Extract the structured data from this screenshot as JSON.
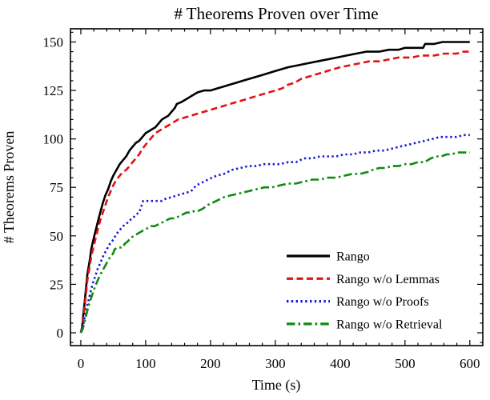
{
  "chart_data": {
    "type": "line",
    "title": "# Theorems Proven over Time",
    "xlabel": "Time (s)",
    "ylabel": "# Theorems Proven",
    "xlim": [
      -16,
      620
    ],
    "ylim": [
      -6.6,
      156.8
    ],
    "x_ticks": [
      0,
      100,
      200,
      300,
      400,
      500,
      600
    ],
    "y_ticks": [
      0,
      25,
      50,
      75,
      100,
      125,
      150
    ],
    "x_minor_step": 20,
    "y_minor_step": 5,
    "grid": false,
    "legend_position": "lower right",
    "series": [
      {
        "name": "Rango",
        "color": "#000000",
        "style": "solid",
        "points": [
          [
            0,
            0
          ],
          [
            2,
            3
          ],
          [
            4,
            10
          ],
          [
            6,
            16
          ],
          [
            8,
            23
          ],
          [
            10,
            30
          ],
          [
            12,
            34
          ],
          [
            14,
            38
          ],
          [
            16,
            43
          ],
          [
            18,
            46
          ],
          [
            20,
            49
          ],
          [
            23,
            53
          ],
          [
            26,
            57
          ],
          [
            30,
            62
          ],
          [
            34,
            67
          ],
          [
            38,
            71
          ],
          [
            42,
            74
          ],
          [
            46,
            78
          ],
          [
            50,
            81
          ],
          [
            55,
            84
          ],
          [
            60,
            87
          ],
          [
            65,
            89
          ],
          [
            70,
            91
          ],
          [
            75,
            94
          ],
          [
            80,
            96
          ],
          [
            85,
            98
          ],
          [
            90,
            99
          ],
          [
            95,
            101
          ],
          [
            100,
            103
          ],
          [
            105,
            104
          ],
          [
            110,
            105
          ],
          [
            115,
            106
          ],
          [
            120,
            108
          ],
          [
            125,
            110
          ],
          [
            130,
            111
          ],
          [
            135,
            112
          ],
          [
            140,
            114
          ],
          [
            145,
            116
          ],
          [
            148,
            118
          ],
          [
            155,
            119
          ],
          [
            160,
            120
          ],
          [
            165,
            121
          ],
          [
            170,
            122
          ],
          [
            175,
            123
          ],
          [
            180,
            124
          ],
          [
            190,
            125
          ],
          [
            200,
            125
          ],
          [
            210,
            126
          ],
          [
            220,
            127
          ],
          [
            230,
            128
          ],
          [
            240,
            129
          ],
          [
            250,
            130
          ],
          [
            260,
            131
          ],
          [
            270,
            132
          ],
          [
            280,
            133
          ],
          [
            290,
            134
          ],
          [
            300,
            135
          ],
          [
            310,
            136
          ],
          [
            320,
            137
          ],
          [
            335,
            138
          ],
          [
            350,
            139
          ],
          [
            365,
            140
          ],
          [
            380,
            141
          ],
          [
            395,
            142
          ],
          [
            410,
            143
          ],
          [
            425,
            144
          ],
          [
            440,
            145
          ],
          [
            460,
            145
          ],
          [
            475,
            146
          ],
          [
            490,
            146
          ],
          [
            500,
            147
          ],
          [
            515,
            147
          ],
          [
            528,
            147
          ],
          [
            531,
            149
          ],
          [
            545,
            149
          ],
          [
            558,
            150
          ],
          [
            600,
            150
          ]
        ]
      },
      {
        "name": "Rango w/o Lemmas",
        "color": "#e31111",
        "style": "dashed",
        "points": [
          [
            0,
            0
          ],
          [
            2,
            2
          ],
          [
            4,
            8
          ],
          [
            6,
            14
          ],
          [
            8,
            20
          ],
          [
            10,
            27
          ],
          [
            12,
            31
          ],
          [
            14,
            35
          ],
          [
            16,
            39
          ],
          [
            18,
            42
          ],
          [
            20,
            45
          ],
          [
            23,
            49
          ],
          [
            26,
            53
          ],
          [
            30,
            58
          ],
          [
            34,
            62
          ],
          [
            38,
            66
          ],
          [
            42,
            70
          ],
          [
            46,
            73
          ],
          [
            50,
            76
          ],
          [
            55,
            79
          ],
          [
            60,
            81
          ],
          [
            65,
            83
          ],
          [
            70,
            84
          ],
          [
            75,
            86
          ],
          [
            80,
            88
          ],
          [
            85,
            90
          ],
          [
            90,
            92
          ],
          [
            95,
            95
          ],
          [
            100,
            97
          ],
          [
            105,
            99
          ],
          [
            110,
            101
          ],
          [
            115,
            103
          ],
          [
            120,
            104
          ],
          [
            125,
            105
          ],
          [
            130,
            106
          ],
          [
            135,
            107
          ],
          [
            140,
            108
          ],
          [
            145,
            109
          ],
          [
            150,
            110
          ],
          [
            160,
            111
          ],
          [
            170,
            112
          ],
          [
            180,
            113
          ],
          [
            190,
            114
          ],
          [
            200,
            115
          ],
          [
            210,
            116
          ],
          [
            220,
            117
          ],
          [
            230,
            118
          ],
          [
            240,
            119
          ],
          [
            250,
            120
          ],
          [
            260,
            121
          ],
          [
            270,
            122
          ],
          [
            280,
            123
          ],
          [
            290,
            124
          ],
          [
            300,
            125
          ],
          [
            310,
            126
          ],
          [
            320,
            128
          ],
          [
            330,
            129
          ],
          [
            340,
            131
          ],
          [
            350,
            132
          ],
          [
            360,
            133
          ],
          [
            370,
            134
          ],
          [
            380,
            135
          ],
          [
            390,
            136
          ],
          [
            400,
            137
          ],
          [
            415,
            138
          ],
          [
            430,
            139
          ],
          [
            445,
            140
          ],
          [
            460,
            140
          ],
          [
            475,
            141
          ],
          [
            490,
            142
          ],
          [
            510,
            142
          ],
          [
            525,
            143
          ],
          [
            545,
            143
          ],
          [
            560,
            144
          ],
          [
            580,
            144
          ],
          [
            590,
            145
          ],
          [
            600,
            145
          ]
        ]
      },
      {
        "name": "Rango w/o Proofs",
        "color": "#1919d6",
        "style": "dotted",
        "points": [
          [
            0,
            0
          ],
          [
            3,
            3
          ],
          [
            6,
            8
          ],
          [
            9,
            13
          ],
          [
            12,
            17
          ],
          [
            15,
            21
          ],
          [
            18,
            25
          ],
          [
            22,
            29
          ],
          [
            26,
            33
          ],
          [
            30,
            36
          ],
          [
            35,
            40
          ],
          [
            40,
            43
          ],
          [
            45,
            46
          ],
          [
            50,
            48
          ],
          [
            55,
            51
          ],
          [
            60,
            53
          ],
          [
            65,
            55
          ],
          [
            70,
            56
          ],
          [
            75,
            58
          ],
          [
            80,
            59
          ],
          [
            85,
            61
          ],
          [
            90,
            62
          ],
          [
            93,
            65
          ],
          [
            96,
            68
          ],
          [
            110,
            68
          ],
          [
            125,
            68
          ],
          [
            130,
            69
          ],
          [
            140,
            70
          ],
          [
            150,
            71
          ],
          [
            160,
            72
          ],
          [
            170,
            73
          ],
          [
            178,
            76
          ],
          [
            184,
            77
          ],
          [
            196,
            79
          ],
          [
            209,
            81
          ],
          [
            221,
            82
          ],
          [
            233,
            84
          ],
          [
            246,
            85
          ],
          [
            258,
            86
          ],
          [
            270,
            86
          ],
          [
            283,
            87
          ],
          [
            295,
            87
          ],
          [
            307,
            87
          ],
          [
            320,
            88
          ],
          [
            332,
            88
          ],
          [
            344,
            90
          ],
          [
            357,
            90
          ],
          [
            369,
            91
          ],
          [
            381,
            91
          ],
          [
            394,
            91
          ],
          [
            406,
            92
          ],
          [
            419,
            92
          ],
          [
            431,
            93
          ],
          [
            443,
            93
          ],
          [
            455,
            94
          ],
          [
            468,
            94
          ],
          [
            480,
            95
          ],
          [
            492,
            96
          ],
          [
            505,
            97
          ],
          [
            517,
            98
          ],
          [
            530,
            99
          ],
          [
            542,
            100
          ],
          [
            554,
            101
          ],
          [
            567,
            101
          ],
          [
            580,
            101
          ],
          [
            590,
            102
          ],
          [
            600,
            102
          ]
        ]
      },
      {
        "name": "Rango w/o Retrieval",
        "color": "#108a10",
        "style": "dashdot",
        "points": [
          [
            0,
            0
          ],
          [
            3,
            2
          ],
          [
            6,
            6
          ],
          [
            9,
            10
          ],
          [
            12,
            14
          ],
          [
            15,
            17
          ],
          [
            18,
            20
          ],
          [
            22,
            24
          ],
          [
            26,
            27
          ],
          [
            30,
            30
          ],
          [
            35,
            33
          ],
          [
            40,
            36
          ],
          [
            45,
            39
          ],
          [
            50,
            41
          ],
          [
            52,
            43
          ],
          [
            56,
            44
          ],
          [
            60,
            44
          ],
          [
            64,
            44
          ],
          [
            68,
            46
          ],
          [
            72,
            47
          ],
          [
            77,
            49
          ],
          [
            82,
            50
          ],
          [
            87,
            51
          ],
          [
            92,
            52
          ],
          [
            97,
            53
          ],
          [
            103,
            54
          ],
          [
            108,
            55
          ],
          [
            114,
            55
          ],
          [
            120,
            56
          ],
          [
            126,
            57
          ],
          [
            132,
            58
          ],
          [
            138,
            59
          ],
          [
            145,
            59
          ],
          [
            151,
            60
          ],
          [
            157,
            61
          ],
          [
            163,
            62
          ],
          [
            170,
            62
          ],
          [
            176,
            63
          ],
          [
            182,
            63
          ],
          [
            188,
            64
          ],
          [
            196,
            66
          ],
          [
            209,
            68
          ],
          [
            221,
            70
          ],
          [
            233,
            71
          ],
          [
            246,
            72
          ],
          [
            258,
            73
          ],
          [
            270,
            74
          ],
          [
            283,
            75
          ],
          [
            295,
            75
          ],
          [
            307,
            76
          ],
          [
            320,
            77
          ],
          [
            332,
            77
          ],
          [
            344,
            78
          ],
          [
            357,
            79
          ],
          [
            369,
            79
          ],
          [
            381,
            80
          ],
          [
            394,
            80
          ],
          [
            406,
            81
          ],
          [
            419,
            82
          ],
          [
            431,
            82
          ],
          [
            443,
            83
          ],
          [
            450,
            84
          ],
          [
            460,
            85
          ],
          [
            470,
            85
          ],
          [
            480,
            86
          ],
          [
            490,
            86
          ],
          [
            500,
            87
          ],
          [
            510,
            87
          ],
          [
            520,
            88
          ],
          [
            530,
            88
          ],
          [
            540,
            90
          ],
          [
            548,
            91
          ],
          [
            556,
            91
          ],
          [
            564,
            92
          ],
          [
            572,
            92
          ],
          [
            580,
            93
          ],
          [
            590,
            93
          ],
          [
            600,
            93
          ]
        ]
      }
    ]
  }
}
